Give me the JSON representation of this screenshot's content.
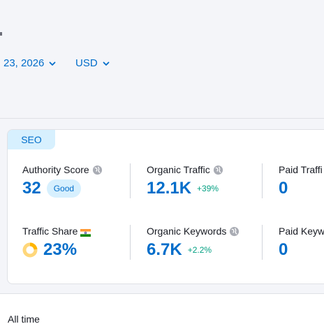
{
  "header": {
    "date_filter": "23, 2026",
    "currency_filter": "USD"
  },
  "card": {
    "tag": "SEO",
    "metrics": [
      {
        "label": "Authority Score",
        "value": "32",
        "badge": "Good",
        "icon": "globe-icon"
      },
      {
        "label": "Organic Traffic",
        "value": "12.1K",
        "delta": "+39%",
        "icon": "globe-icon"
      },
      {
        "label": "Paid Traffi",
        "value": "0"
      },
      {
        "label": "Traffic Share",
        "value": "23%",
        "icon": "india-flag-icon",
        "donut_fraction": 0.23
      },
      {
        "label": "Organic Keywords",
        "value": "6.7K",
        "delta": "+2.2%",
        "icon": "globe-icon"
      },
      {
        "label": "Paid Keyw",
        "value": "0"
      }
    ]
  },
  "footer": {
    "period_label": "All time"
  },
  "colors": {
    "accent": "#006dca",
    "positive": "#009f81",
    "badge_bg": "#d7f0fe",
    "donut": "#ffb500"
  }
}
